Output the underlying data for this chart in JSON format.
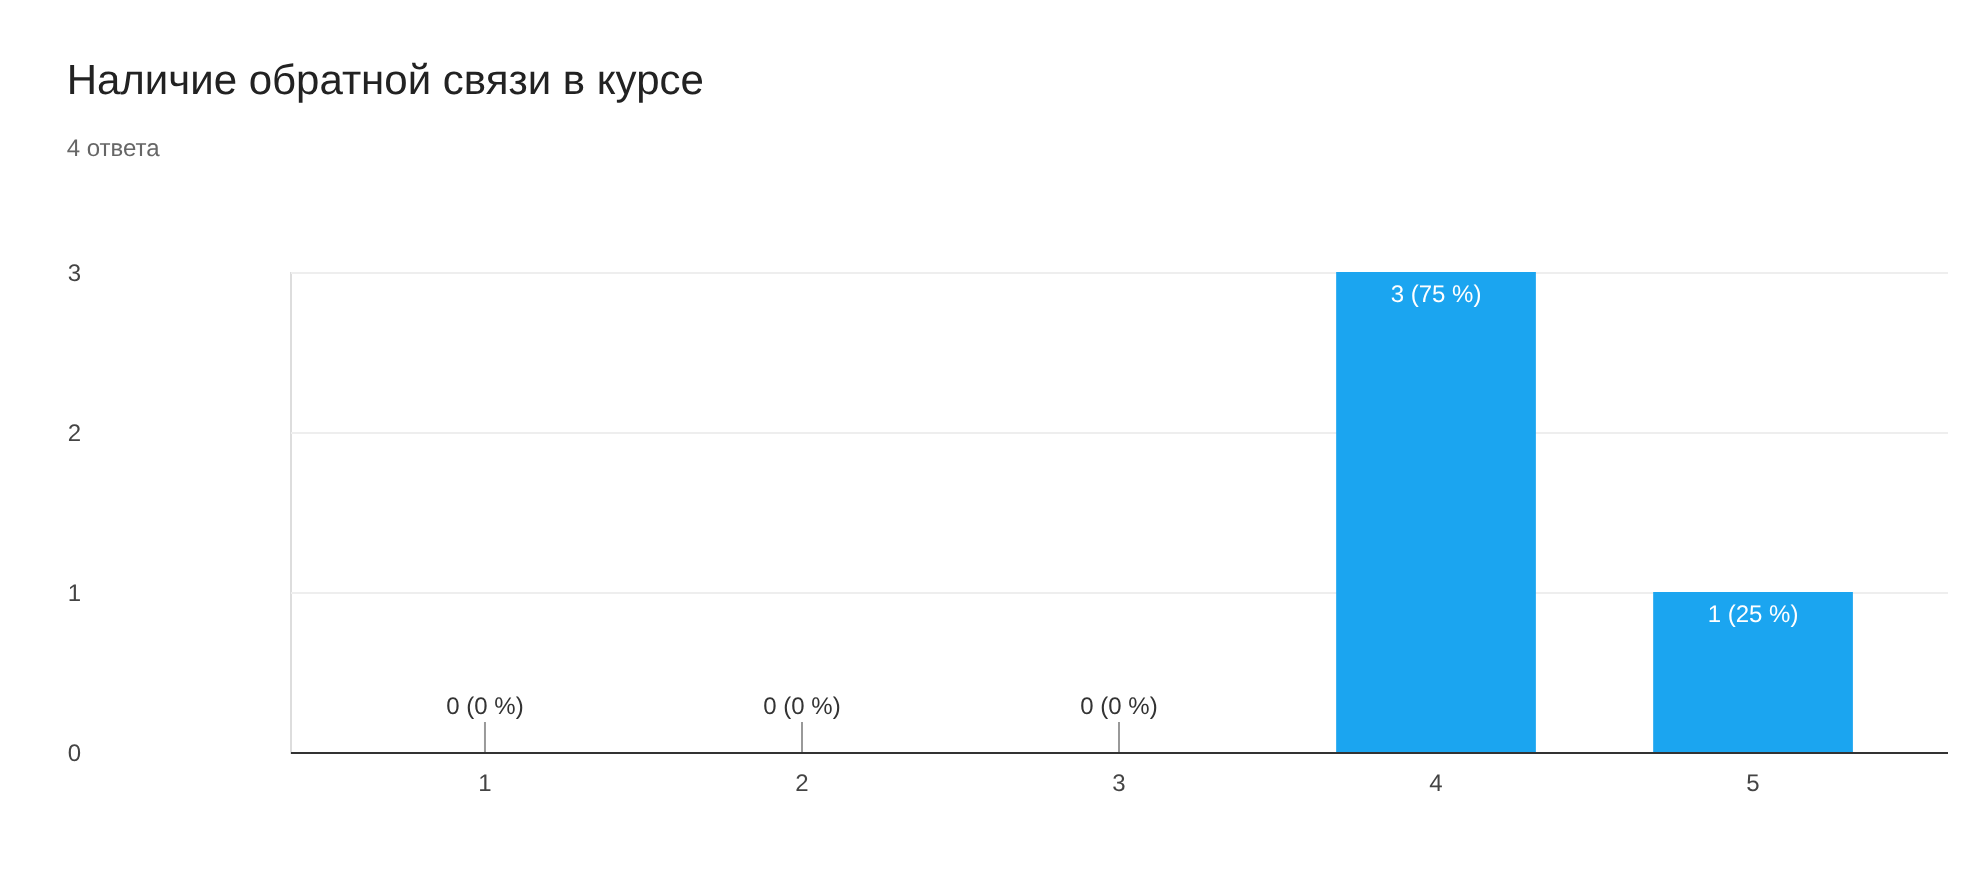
{
  "chart_data": {
    "type": "bar",
    "title": "Наличие обратной связи в курсе",
    "subtitle": "4 ответа",
    "categories": [
      "1",
      "2",
      "3",
      "4",
      "5"
    ],
    "values": [
      0,
      0,
      0,
      3,
      1
    ],
    "value_labels": [
      "0 (0 %)",
      "0 (0 %)",
      "0 (0 %)",
      "3 (75 %)",
      "1 (25 %)"
    ],
    "color": "#1ba5f0",
    "ylim": [
      0,
      3
    ],
    "yticks": [
      0,
      1,
      2,
      3
    ],
    "grid": "y"
  }
}
